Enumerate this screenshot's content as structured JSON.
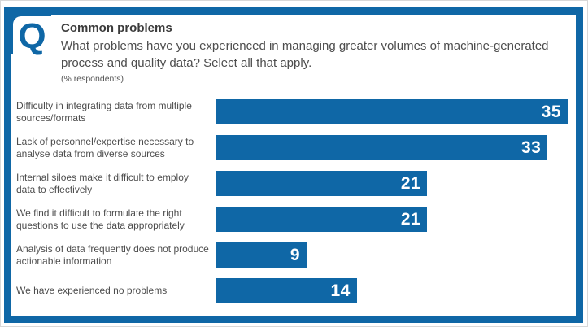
{
  "accent_color": "#0f67a6",
  "header": {
    "icon_glyph": "Q",
    "title": "Common problems",
    "question": "What problems have you experienced in managing greater volumes of machine-generated process and quality data? Select all that apply.",
    "unit_note": "(% respondents)"
  },
  "chart_data": {
    "type": "bar",
    "orientation": "horizontal",
    "title": "Common problems",
    "subtitle": "What problems have you experienced in managing greater volumes of machine-generated process and quality data? Select all that apply.",
    "unit": "% respondents",
    "xlabel": "",
    "ylabel": "",
    "xlim": [
      0,
      35
    ],
    "grid": false,
    "legend": "none",
    "bar_color": "#0f67a6",
    "value_label_position": "inside-end",
    "value_label_color": "#ffffff",
    "categories": [
      "Difficulty in integrating data from multiple\nsources/formats",
      "Lack of personnel/expertise necessary to\nanalyse data from diverse sources",
      "Internal siloes make it difficult to employ\ndata to effectively",
      "We find it difficult to formulate the right\nquestions to use the data appropriately",
      "Analysis of data frequently does not produce\nactionable information",
      "We have experienced no problems"
    ],
    "values": [
      35,
      33,
      21,
      21,
      9,
      14
    ]
  }
}
